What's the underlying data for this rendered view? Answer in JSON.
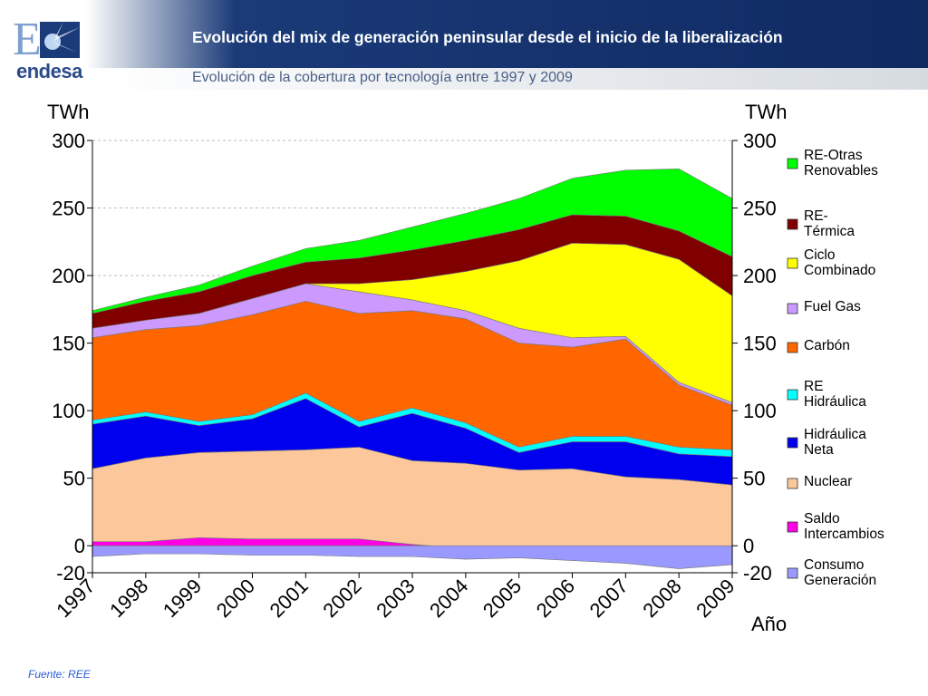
{
  "header": {
    "logo_text": "endesa",
    "title": "Evolución del mix de generación peninsular desde el inicio de la liberalización",
    "subtitle": "Evolución de la cobertura por tecnología entre 1997 y 2009"
  },
  "footer": {
    "source": "Fuente: REE"
  },
  "chart_data": {
    "type": "area",
    "stacked": true,
    "title": "Evolución de la cobertura por tecnología entre 1997 y 2009",
    "ylabel_left": "TWh",
    "ylabel_right": "TWh",
    "xlabel": "Año",
    "ylim": [
      -20,
      300
    ],
    "yticks": [
      -20,
      0,
      50,
      100,
      150,
      200,
      250,
      300
    ],
    "ytick_labels": [
      "-20",
      "0",
      "50",
      "100",
      "150",
      "200",
      "250",
      "300"
    ],
    "grid": true,
    "legend_position": "right",
    "categories": [
      "1997",
      "1998",
      "1999",
      "2000",
      "2001",
      "2002",
      "2003",
      "2004",
      "2005",
      "2006",
      "2007",
      "2008",
      "2009"
    ],
    "series_positive": [
      {
        "name": "Saldo Intercambios",
        "color": "#ff00e6",
        "values": [
          3,
          3,
          6,
          5,
          5,
          5,
          1,
          -2,
          -2,
          -3,
          -4,
          -10,
          -8
        ]
      },
      {
        "name": "Nuclear",
        "color": "#fcc89b",
        "values": [
          54,
          62,
          63,
          65,
          66,
          68,
          62,
          63,
          58,
          60,
          55,
          59,
          53
        ]
      },
      {
        "name": "Hidráulica Neta",
        "color": "#0000ee",
        "values": [
          33,
          31,
          20,
          24,
          38,
          15,
          35,
          26,
          13,
          20,
          26,
          19,
          21
        ]
      },
      {
        "name": "RE Hidráulica",
        "color": "#00ffff",
        "values": [
          3,
          3,
          3,
          3,
          4,
          4,
          4,
          4,
          4,
          4,
          4,
          5,
          5
        ]
      },
      {
        "name": "Carbón",
        "color": "#ff6600",
        "values": [
          61,
          61,
          71,
          74,
          68,
          80,
          72,
          77,
          77,
          66,
          72,
          46,
          33
        ]
      },
      {
        "name": "Fuel Gas",
        "color": "#cc99ff",
        "values": [
          7,
          7,
          9,
          12,
          13,
          16,
          8,
          6,
          11,
          7,
          2,
          2,
          2
        ]
      },
      {
        "name": "Ciclo Combinado",
        "color": "#ffff00",
        "values": [
          0,
          0,
          0,
          0,
          0,
          6,
          15,
          29,
          50,
          70,
          68,
          91,
          79
        ]
      },
      {
        "name": "RE-Térmica",
        "color": "#800000",
        "values": [
          11,
          14,
          16,
          17,
          16,
          19,
          22,
          23,
          23,
          21,
          21,
          21,
          29
        ]
      },
      {
        "name": "RE-Otras Renovables",
        "color": "#00ff00",
        "values": [
          2,
          3,
          5,
          7,
          10,
          13,
          17,
          20,
          23,
          27,
          34,
          46,
          43
        ]
      }
    ],
    "series_negative": [
      {
        "name": "Consumo Generación",
        "color": "#9999ff",
        "values": [
          -8,
          -6,
          -6,
          -7,
          -7,
          -8,
          -8,
          -10,
          -9,
          -11,
          -13,
          -17,
          -14
        ]
      }
    ],
    "legend_order": [
      "RE-Otras Renovables",
      "RE-Térmica",
      "Ciclo Combinado",
      "Fuel Gas",
      "Carbón",
      "RE Hidráulica",
      "Hidráulica Neta",
      "Nuclear",
      "Saldo Intercambios",
      "Consumo Generación"
    ],
    "legend_labels": {
      "RE-Otras Renovables": [
        "RE-Otras",
        "Renovables"
      ],
      "RE-Térmica": [
        "RE-",
        "Térmica"
      ],
      "Ciclo Combinado": [
        "Ciclo",
        "Combinado"
      ],
      "Fuel Gas": [
        "Fuel Gas"
      ],
      "Carbón": [
        "Carbón"
      ],
      "RE Hidráulica": [
        "RE",
        "Hidráulica"
      ],
      "Hidráulica Neta": [
        "Hidráulica",
        "Neta"
      ],
      "Nuclear": [
        "Nuclear"
      ],
      "Saldo Intercambios": [
        "Saldo",
        "Intercambios"
      ],
      "Consumo Generación": [
        "Consumo",
        "Generación"
      ]
    }
  }
}
